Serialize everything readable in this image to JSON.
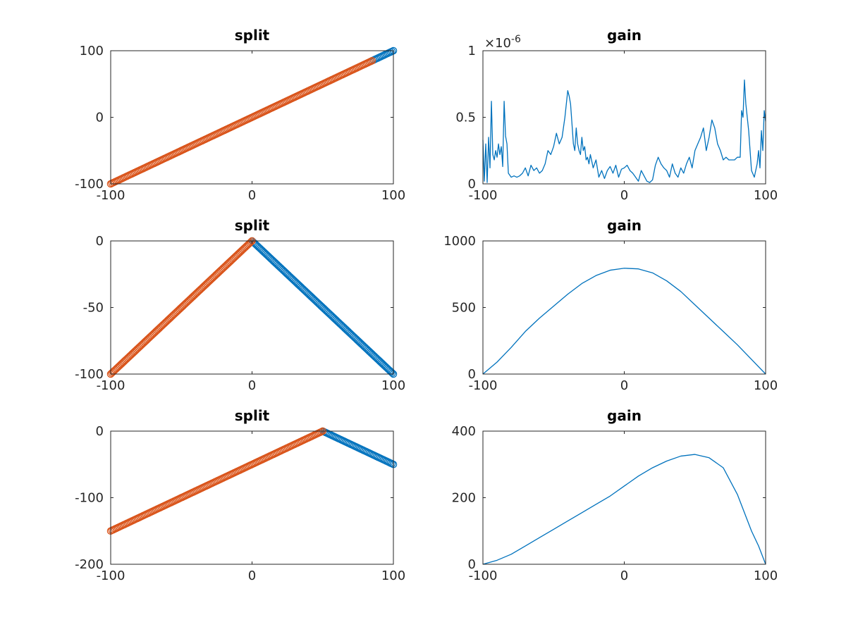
{
  "colors": {
    "blue": "#0072BD",
    "orange": "#D95319",
    "axis": "#262626"
  },
  "chart_data": [
    {
      "type": "scatter",
      "title": "split",
      "xlim": [
        -100,
        100
      ],
      "ylim": [
        -100,
        100
      ],
      "xticks": [
        -100,
        0,
        100
      ],
      "yticks": [
        -100,
        0,
        100
      ],
      "xtick_labels": [
        "-100",
        "0",
        "100"
      ],
      "ytick_labels": [
        "-100",
        "0",
        "100"
      ],
      "grid": false,
      "series": [
        {
          "color": "#0072BD",
          "segments": [
            [
              [
                84,
                84
              ],
              [
                100,
                100
              ]
            ]
          ]
        },
        {
          "color": "#D95319",
          "segments": [
            [
              [
                -100,
                -100
              ],
              [
                85,
                85
              ]
            ]
          ]
        }
      ]
    },
    {
      "type": "line",
      "title": "gain",
      "xlim": [
        -100,
        100
      ],
      "ylim": [
        0,
        1
      ],
      "xticks": [
        -100,
        0,
        100
      ],
      "yticks": [
        0,
        0.5,
        1
      ],
      "xtick_labels": [
        "-100",
        "0",
        "100"
      ],
      "ytick_labels": [
        "0",
        "0.5",
        "1"
      ],
      "y_exponent_label": "×10-6",
      "grid": false,
      "series": [
        {
          "color": "#0072BD",
          "x": [
            -100,
            -99,
            -98,
            -97,
            -96,
            -95,
            -94,
            -93,
            -92,
            -91,
            -90,
            -89,
            -88,
            -87,
            -86,
            -85,
            -84,
            -83,
            -82,
            -80,
            -78,
            -76,
            -74,
            -72,
            -70,
            -68,
            -66,
            -64,
            -62,
            -60,
            -58,
            -56,
            -54,
            -52,
            -50,
            -48,
            -46,
            -44,
            -42,
            -40,
            -39,
            -38,
            -37,
            -36,
            -35,
            -34,
            -33,
            -32,
            -31,
            -30,
            -29,
            -28,
            -27,
            -26,
            -25,
            -24,
            -22,
            -20,
            -18,
            -16,
            -14,
            -12,
            -10,
            -8,
            -6,
            -4,
            -2,
            0,
            2,
            4,
            6,
            8,
            10,
            12,
            14,
            16,
            18,
            20,
            22,
            24,
            26,
            28,
            30,
            32,
            34,
            36,
            38,
            40,
            42,
            44,
            46,
            48,
            50,
            52,
            54,
            56,
            58,
            60,
            62,
            64,
            66,
            68,
            70,
            72,
            74,
            76,
            78,
            80,
            82,
            83,
            84,
            85,
            86,
            88,
            90,
            92,
            94,
            95,
            96,
            97,
            98,
            99,
            100
          ],
          "y": [
            0.33,
            0.02,
            0.3,
            0.01,
            0.35,
            0.12,
            0.62,
            0.22,
            0.18,
            0.25,
            0.2,
            0.3,
            0.22,
            0.28,
            0.13,
            0.62,
            0.36,
            0.3,
            0.08,
            0.05,
            0.06,
            0.05,
            0.06,
            0.08,
            0.12,
            0.06,
            0.14,
            0.1,
            0.12,
            0.08,
            0.1,
            0.15,
            0.25,
            0.22,
            0.28,
            0.38,
            0.3,
            0.35,
            0.5,
            0.7,
            0.66,
            0.6,
            0.45,
            0.3,
            0.25,
            0.42,
            0.3,
            0.25,
            0.22,
            0.35,
            0.25,
            0.28,
            0.18,
            0.2,
            0.15,
            0.22,
            0.12,
            0.18,
            0.05,
            0.1,
            0.04,
            0.1,
            0.13,
            0.08,
            0.14,
            0.05,
            0.11,
            0.12,
            0.14,
            0.1,
            0.08,
            0.05,
            0.02,
            0.1,
            0.06,
            0.02,
            0.01,
            0.03,
            0.14,
            0.2,
            0.15,
            0.12,
            0.1,
            0.05,
            0.15,
            0.08,
            0.05,
            0.12,
            0.08,
            0.15,
            0.2,
            0.12,
            0.25,
            0.3,
            0.35,
            0.42,
            0.25,
            0.35,
            0.48,
            0.42,
            0.3,
            0.25,
            0.18,
            0.2,
            0.18,
            0.18,
            0.18,
            0.2,
            0.2,
            0.55,
            0.5,
            0.78,
            0.6,
            0.4,
            0.1,
            0.05,
            0.15,
            0.25,
            0.12,
            0.4,
            0.25,
            0.55,
            0.47
          ]
        }
      ]
    },
    {
      "type": "scatter",
      "title": "split",
      "xlim": [
        -100,
        100
      ],
      "ylim": [
        -100,
        0
      ],
      "xticks": [
        -100,
        0,
        100
      ],
      "yticks": [
        -100,
        -50,
        0
      ],
      "xtick_labels": [
        "-100",
        "0",
        "100"
      ],
      "ytick_labels": [
        "-100",
        "-50",
        "0"
      ],
      "grid": false,
      "series": [
        {
          "color": "#0072BD",
          "segments": [
            [
              [
                0,
                0
              ],
              [
                100,
                -100
              ]
            ]
          ]
        },
        {
          "color": "#D95319",
          "segments": [
            [
              [
                -100,
                -100
              ],
              [
                0,
                0
              ]
            ]
          ]
        }
      ]
    },
    {
      "type": "line",
      "title": "gain",
      "xlim": [
        -100,
        100
      ],
      "ylim": [
        0,
        1000
      ],
      "xticks": [
        -100,
        0,
        100
      ],
      "yticks": [
        0,
        500,
        1000
      ],
      "xtick_labels": [
        "-100",
        "0",
        "100"
      ],
      "ytick_labels": [
        "0",
        "500",
        "1000"
      ],
      "grid": false,
      "series": [
        {
          "color": "#0072BD",
          "x": [
            -100,
            -90,
            -80,
            -70,
            -60,
            -50,
            -40,
            -30,
            -20,
            -10,
            0,
            10,
            20,
            30,
            40,
            50,
            60,
            70,
            80,
            90,
            100
          ],
          "y": [
            0,
            90,
            200,
            320,
            420,
            510,
            600,
            680,
            740,
            780,
            795,
            790,
            760,
            700,
            620,
            520,
            420,
            320,
            220,
            110,
            0
          ]
        }
      ]
    },
    {
      "type": "scatter",
      "title": "split",
      "xlim": [
        -100,
        100
      ],
      "ylim": [
        -200,
        0
      ],
      "xticks": [
        -100,
        0,
        100
      ],
      "yticks": [
        -200,
        -100,
        0
      ],
      "xtick_labels": [
        "-100",
        "0",
        "100"
      ],
      "ytick_labels": [
        "-200",
        "-100",
        "0"
      ],
      "grid": false,
      "series": [
        {
          "color": "#0072BD",
          "segments": [
            [
              [
                50,
                0
              ],
              [
                100,
                -50
              ]
            ]
          ]
        },
        {
          "color": "#D95319",
          "segments": [
            [
              [
                -100,
                -150
              ],
              [
                50,
                0
              ]
            ]
          ]
        }
      ]
    },
    {
      "type": "line",
      "title": "gain",
      "xlim": [
        -100,
        100
      ],
      "ylim": [
        0,
        400
      ],
      "xticks": [
        -100,
        0,
        100
      ],
      "yticks": [
        0,
        200,
        400
      ],
      "xtick_labels": [
        "-100",
        "0",
        "100"
      ],
      "ytick_labels": [
        "0",
        "200",
        "400"
      ],
      "grid": false,
      "series": [
        {
          "color": "#0072BD",
          "x": [
            -100,
            -90,
            -80,
            -70,
            -60,
            -50,
            -40,
            -30,
            -20,
            -10,
            0,
            10,
            20,
            30,
            40,
            50,
            60,
            70,
            80,
            90,
            95,
            100
          ],
          "y": [
            0,
            12,
            30,
            55,
            80,
            105,
            130,
            155,
            180,
            205,
            235,
            265,
            290,
            310,
            325,
            330,
            320,
            290,
            210,
            100,
            55,
            0
          ]
        }
      ]
    }
  ]
}
